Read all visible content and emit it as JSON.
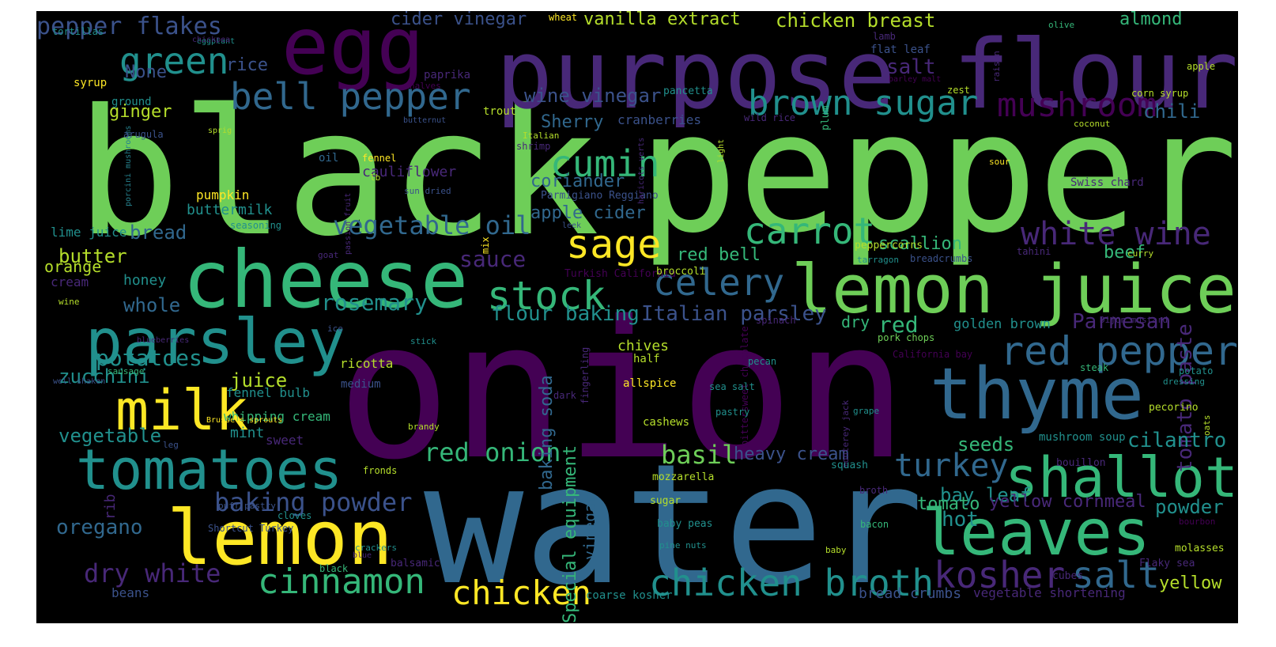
{
  "colors": {
    "background": "#000000",
    "palette": {
      "purple": "#440154",
      "indigo": "#3b528b",
      "steel": "#31688e",
      "teal": "#21908d",
      "sea": "#35b779",
      "green": "#6ece58",
      "lime": "#b5de2b",
      "yellow": "#fde725",
      "violet": "#482878",
      "slate": "#26828e"
    }
  },
  "words": [
    {
      "text": "black",
      "color": "green"
    },
    {
      "text": "pepper",
      "color": "green"
    },
    {
      "text": "onion",
      "color": "purple"
    },
    {
      "text": "water",
      "color": "steel"
    },
    {
      "text": "purpose flour",
      "color": "violet"
    },
    {
      "text": "egg",
      "color": "purple"
    },
    {
      "text": "cheese",
      "color": "sea"
    },
    {
      "text": "lemon juice",
      "color": "green"
    },
    {
      "text": "parsley",
      "color": "teal"
    },
    {
      "text": "thyme",
      "color": "steel"
    },
    {
      "text": "milk",
      "color": "yellow"
    },
    {
      "text": "tomatoes",
      "color": "teal"
    },
    {
      "text": "lemon",
      "color": "yellow"
    },
    {
      "text": "leaves",
      "color": "sea"
    },
    {
      "text": "shallot",
      "color": "sea"
    },
    {
      "text": "green",
      "color": "teal"
    },
    {
      "text": "bell pepper",
      "color": "steel"
    },
    {
      "text": "brown sugar",
      "color": "teal"
    },
    {
      "text": "mushroom",
      "color": "purple"
    },
    {
      "text": "cumin",
      "color": "sea"
    },
    {
      "text": "sage",
      "color": "yellow"
    },
    {
      "text": "carrot",
      "color": "sea"
    },
    {
      "text": "stock",
      "color": "sea"
    },
    {
      "text": "celery",
      "color": "steel"
    },
    {
      "text": "red pepper",
      "color": "steel"
    },
    {
      "text": "white wine",
      "color": "violet"
    },
    {
      "text": "chicken broth",
      "color": "teal"
    },
    {
      "text": "cinnamon",
      "color": "sea"
    },
    {
      "text": "chicken",
      "color": "yellow"
    },
    {
      "text": "kosher",
      "color": "violet"
    },
    {
      "text": "salt",
      "color": "steel"
    },
    {
      "text": "turkey",
      "color": "steel"
    },
    {
      "text": "red onion",
      "color": "sea"
    },
    {
      "text": "baking powder",
      "color": "indigo"
    },
    {
      "text": "dry white",
      "color": "violet"
    },
    {
      "text": "pepper flakes",
      "color": "indigo"
    },
    {
      "text": "vegetable oil",
      "color": "steel"
    },
    {
      "text": "rosemary",
      "color": "teal"
    },
    {
      "text": "potatoes",
      "color": "teal"
    },
    {
      "text": "oregano",
      "color": "steel"
    },
    {
      "text": "basil",
      "color": "green"
    },
    {
      "text": "tomato paste",
      "color": "violet"
    },
    {
      "text": "Parmesan",
      "color": "violet"
    },
    {
      "text": "Italian parsley",
      "color": "indigo"
    },
    {
      "text": "flour baking",
      "color": "teal"
    },
    {
      "text": "chicken breast",
      "color": "lime"
    },
    {
      "text": "vanilla extract",
      "color": "lime"
    },
    {
      "text": "cider vinegar",
      "color": "indigo"
    },
    {
      "text": "almond",
      "color": "sea"
    },
    {
      "text": "chili",
      "color": "steel"
    },
    {
      "text": "wine vinegar",
      "color": "indigo"
    },
    {
      "text": "coriander",
      "color": "steel"
    },
    {
      "text": "apple cider",
      "color": "steel"
    },
    {
      "text": "Sherry",
      "color": "steel"
    },
    {
      "text": "sauce",
      "color": "violet"
    },
    {
      "text": "juice",
      "color": "lime"
    },
    {
      "text": "zucchini",
      "color": "teal"
    },
    {
      "text": "vegetable",
      "color": "teal"
    },
    {
      "text": "whole",
      "color": "steel"
    },
    {
      "text": "butter",
      "color": "lime"
    },
    {
      "text": "bread",
      "color": "steel"
    },
    {
      "text": "ginger",
      "color": "lime"
    },
    {
      "text": "rice",
      "color": "indigo"
    },
    {
      "text": "None",
      "color": "indigo"
    },
    {
      "text": "salt",
      "color": "violet"
    },
    {
      "text": "red bell",
      "color": "sea"
    },
    {
      "text": "red",
      "color": "sea"
    },
    {
      "text": "scallion",
      "color": "sea"
    },
    {
      "text": "beef",
      "color": "sea"
    },
    {
      "text": "cilantro",
      "color": "teal"
    },
    {
      "text": "seeds",
      "color": "sea"
    },
    {
      "text": "heavy cream",
      "color": "indigo"
    },
    {
      "text": "powder",
      "color": "teal"
    },
    {
      "text": "bay leaf",
      "color": "teal"
    },
    {
      "text": "hot",
      "color": "teal"
    },
    {
      "text": "tomato",
      "color": "sea"
    },
    {
      "text": "yellow cornmeal",
      "color": "violet"
    },
    {
      "text": "yellow",
      "color": "lime"
    },
    {
      "text": "Special equipment",
      "color": "sea"
    },
    {
      "text": "baking soda",
      "color": "steel"
    },
    {
      "text": "vinegar",
      "color": "steel"
    },
    {
      "text": "chives",
      "color": "lime"
    },
    {
      "text": "mint",
      "color": "teal"
    },
    {
      "text": "honey",
      "color": "teal"
    },
    {
      "text": "orange",
      "color": "lime"
    },
    {
      "text": "cream",
      "color": "violet"
    },
    {
      "text": "lime juice",
      "color": "teal"
    },
    {
      "text": "buttermilk",
      "color": "teal"
    },
    {
      "text": "golden brown",
      "color": "teal"
    },
    {
      "text": "dry",
      "color": "sea"
    },
    {
      "text": "ricotta",
      "color": "lime"
    },
    {
      "text": "medium",
      "color": "indigo"
    },
    {
      "text": "whipping cream",
      "color": "sea"
    },
    {
      "text": "fennel bulb",
      "color": "teal"
    },
    {
      "text": "sweet",
      "color": "violet"
    },
    {
      "text": "rib",
      "color": "violet"
    },
    {
      "text": "beans",
      "color": "indigo"
    },
    {
      "text": "coarse kosher",
      "color": "teal"
    },
    {
      "text": "bread crumbs",
      "color": "indigo"
    },
    {
      "text": "vegetable shortening",
      "color": "violet"
    },
    {
      "text": "mushroom soup",
      "color": "teal"
    },
    {
      "text": "cauliflower",
      "color": "violet"
    },
    {
      "text": "Parmigiano Reggiano",
      "color": "indigo"
    },
    {
      "text": "peppercorns",
      "color": "lime"
    },
    {
      "text": "cranberries",
      "color": "indigo"
    },
    {
      "text": "flat leaf",
      "color": "indigo"
    },
    {
      "text": "pumpkin",
      "color": "yellow"
    },
    {
      "text": "seasoning",
      "color": "teal"
    },
    {
      "text": "porcini mushrooms",
      "color": "slate"
    },
    {
      "text": "arugula",
      "color": "indigo"
    },
    {
      "text": "ground",
      "color": "teal"
    },
    {
      "text": "syrup",
      "color": "yellow"
    },
    {
      "text": "paprika",
      "color": "violet"
    },
    {
      "text": "halves",
      "color": "purple"
    },
    {
      "text": "trout",
      "color": "lime"
    },
    {
      "text": "Italian",
      "color": "lime"
    },
    {
      "text": "shrimp",
      "color": "violet"
    },
    {
      "text": "oil",
      "color": "steel"
    },
    {
      "text": "fennel",
      "color": "yellow"
    },
    {
      "text": "lb",
      "color": "lime"
    },
    {
      "text": "sun dried",
      "color": "indigo"
    },
    {
      "text": "passion fruit",
      "color": "violet"
    },
    {
      "text": "haricots verts",
      "color": "violet"
    },
    {
      "text": "pancetta",
      "color": "teal"
    },
    {
      "text": "lamb",
      "color": "violet"
    },
    {
      "text": "wheat",
      "color": "yellow"
    },
    {
      "text": "olive",
      "color": "sea"
    },
    {
      "text": "apple",
      "color": "lime"
    },
    {
      "text": "raisin",
      "color": "violet"
    },
    {
      "text": "barley malt",
      "color": "purple"
    },
    {
      "text": "zest",
      "color": "lime"
    },
    {
      "text": "corn syrup",
      "color": "lime"
    },
    {
      "text": "coconut",
      "color": "lime"
    },
    {
      "text": "wild rice",
      "color": "violet"
    },
    {
      "text": "plum",
      "color": "sea"
    },
    {
      "text": "light",
      "color": "lime"
    },
    {
      "text": "sour",
      "color": "yellow"
    },
    {
      "text": "Swiss chard",
      "color": "violet"
    },
    {
      "text": "tarragon",
      "color": "teal"
    },
    {
      "text": "breadcrumbs",
      "color": "indigo"
    },
    {
      "text": "tahini",
      "color": "violet"
    },
    {
      "text": "curry",
      "color": "lime"
    },
    {
      "text": "Turkish California",
      "color": "purple"
    },
    {
      "text": "broccoli",
      "color": "lime"
    },
    {
      "text": "Dijon mustard",
      "color": "violet"
    },
    {
      "text": "pork chops",
      "color": "green"
    },
    {
      "text": "California bay",
      "color": "purple"
    },
    {
      "text": "potato",
      "color": "teal"
    },
    {
      "text": "dressing",
      "color": "teal"
    },
    {
      "text": "steak",
      "color": "sea"
    },
    {
      "text": "pecorino",
      "color": "lime"
    },
    {
      "text": "oats",
      "color": "lime"
    },
    {
      "text": "bouillon",
      "color": "violet"
    },
    {
      "text": "bourbon",
      "color": "purple"
    },
    {
      "text": "molasses",
      "color": "lime"
    },
    {
      "text": "Flaky sea",
      "color": "violet"
    },
    {
      "text": "cubes",
      "color": "violet"
    },
    {
      "text": "grape",
      "color": "teal"
    },
    {
      "text": "monterey jack",
      "color": "violet"
    },
    {
      "text": "bittersweet chocolate",
      "color": "purple"
    },
    {
      "text": "spinach",
      "color": "violet"
    },
    {
      "text": "pecan",
      "color": "teal"
    },
    {
      "text": "half",
      "color": "lime"
    },
    {
      "text": "allspice",
      "color": "yellow"
    },
    {
      "text": "sea salt",
      "color": "teal"
    },
    {
      "text": "pastry",
      "color": "teal"
    },
    {
      "text": "cashews",
      "color": "lime"
    },
    {
      "text": "squash",
      "color": "teal"
    },
    {
      "text": "mozzarella",
      "color": "lime"
    },
    {
      "text": "broth",
      "color": "violet"
    },
    {
      "text": "bacon",
      "color": "sea"
    },
    {
      "text": "sugar",
      "color": "lime"
    },
    {
      "text": "baby peas",
      "color": "teal"
    },
    {
      "text": "pine nuts",
      "color": "teal"
    },
    {
      "text": "baby",
      "color": "lime"
    },
    {
      "text": "fingerling",
      "color": "violet"
    },
    {
      "text": "dark",
      "color": "violet"
    },
    {
      "text": "brandy",
      "color": "lime"
    },
    {
      "text": "fronds",
      "color": "lime"
    },
    {
      "text": "cloves",
      "color": "teal"
    },
    {
      "text": "Shortcut Turkey",
      "color": "indigo"
    },
    {
      "text": "puff pastry",
      "color": "indigo"
    },
    {
      "text": "leg",
      "color": "indigo"
    },
    {
      "text": "crackers",
      "color": "teal"
    },
    {
      "text": "blue",
      "color": "violet"
    },
    {
      "text": "balsamic",
      "color": "violet"
    },
    {
      "text": "black",
      "color": "sea"
    },
    {
      "text": "Brussels sprouts",
      "color": "yellow"
    },
    {
      "text": "well shaken",
      "color": "indigo"
    },
    {
      "text": "sausage",
      "color": "sea"
    },
    {
      "text": "blueberries",
      "color": "violet"
    },
    {
      "text": "stick",
      "color": "teal"
    },
    {
      "text": "ice",
      "color": "indigo"
    },
    {
      "text": "wine",
      "color": "lime"
    },
    {
      "text": "goat",
      "color": "violet"
    },
    {
      "text": "leek",
      "color": "indigo"
    },
    {
      "text": "mix",
      "color": "yellow"
    },
    {
      "text": "sprig",
      "color": "lime"
    },
    {
      "text": "eggplant",
      "color": "teal"
    },
    {
      "text": "butternut",
      "color": "indigo"
    },
    {
      "text": "chickpea",
      "color": "violet"
    },
    {
      "text": "tortillas",
      "color": "teal"
    }
  ]
}
